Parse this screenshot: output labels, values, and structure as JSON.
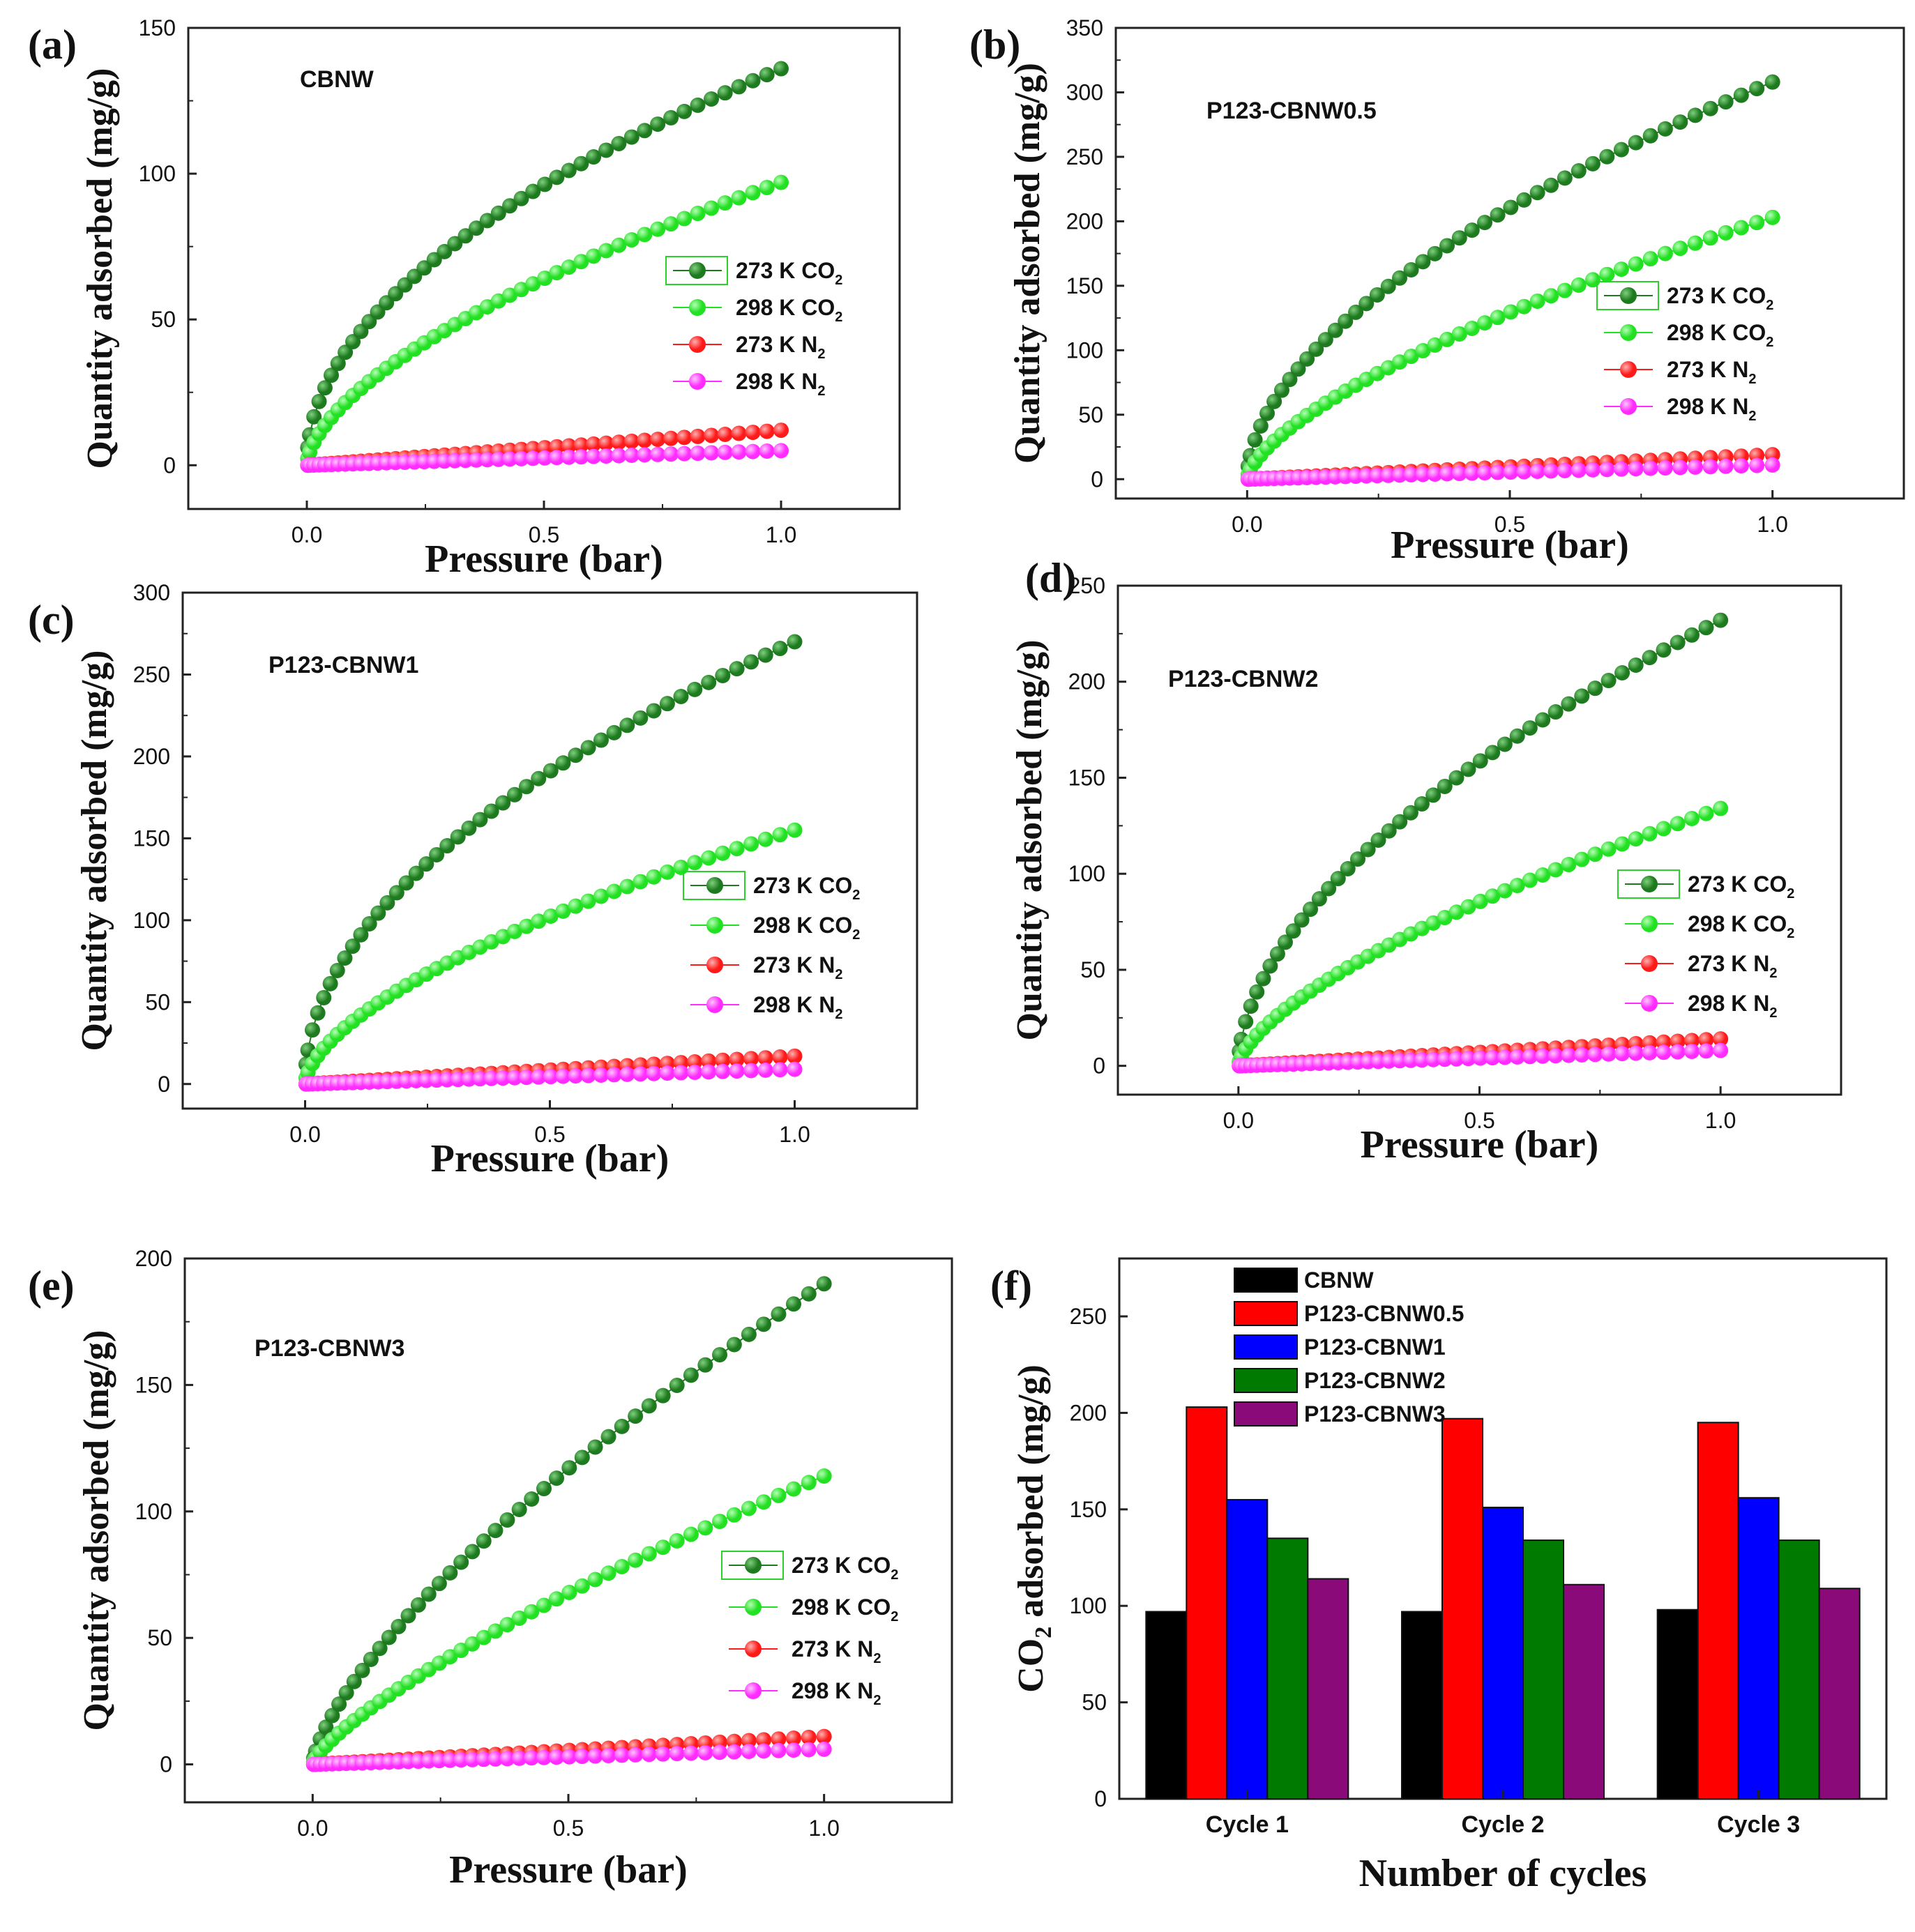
{
  "figure": {
    "series_styles": [
      {
        "key": "co2_273",
        "color": "#1e7a1e",
        "highlight": "#7ecf7e"
      },
      {
        "key": "co2_298",
        "color": "#22e022",
        "highlight": "#b6ffb6"
      },
      {
        "key": "n2_273",
        "color": "#ff1a1a",
        "highlight": "#ffb0b0"
      },
      {
        "key": "n2_298",
        "color": "#ff2bff",
        "highlight": "#ffc6ff"
      }
    ],
    "bar_colors": [
      "#000000",
      "#ff0000",
      "#0000ff",
      "#007a00",
      "#8b0a7a"
    ]
  },
  "chart_data": [
    {
      "panel": "(a)",
      "type": "line",
      "title": "CBNW",
      "xlabel": "Pressure (bar)",
      "ylabel": "Quantity adsorbed (mg/g)",
      "xlim": [
        -0.25,
        1.25
      ],
      "ylim": [
        -15,
        150
      ],
      "xticks": [
        "0.0",
        "0.5",
        "1.0"
      ],
      "yticks": [
        "0",
        "50",
        "100",
        "150"
      ],
      "legend": [
        "273 K CO",
        "298 K CO",
        "273 K N",
        "298 K N"
      ],
      "legend_subs": [
        "2",
        "2",
        "2",
        "2"
      ],
      "series": [
        {
          "name": "273 K CO2",
          "y_at_1bar": 136,
          "shape": 0.5
        },
        {
          "name": "298 K CO2",
          "y_at_1bar": 97,
          "shape": 0.6
        },
        {
          "name": "273 K N2",
          "y_at_1bar": 12,
          "shape": 1.0
        },
        {
          "name": "298 K N2",
          "y_at_1bar": 5,
          "shape": 1.0
        }
      ]
    },
    {
      "panel": "(b)",
      "type": "line",
      "title": "P123-CBNW0.5",
      "xlabel": "Pressure (bar)",
      "ylabel": "Quantity adsorbed (mg/g)",
      "xlim": [
        -0.25,
        1.25
      ],
      "ylim": [
        -15,
        350
      ],
      "xticks": [
        "0.0",
        "0.5",
        "1.0"
      ],
      "yticks": [
        "0",
        "50",
        "100",
        "150",
        "200",
        "250",
        "300",
        "350"
      ],
      "legend": [
        "273 K CO",
        "298 K CO",
        "273 K N",
        "298 K N"
      ],
      "legend_subs": [
        "2",
        "2",
        "2",
        "2"
      ],
      "series": [
        {
          "name": "273 K CO2",
          "y_at_1bar": 308,
          "shape": 0.55
        },
        {
          "name": "298 K CO2",
          "y_at_1bar": 203,
          "shape": 0.65
        },
        {
          "name": "273 K N2",
          "y_at_1bar": 19,
          "shape": 1.0
        },
        {
          "name": "298 K N2",
          "y_at_1bar": 11,
          "shape": 1.0
        }
      ]
    },
    {
      "panel": "(c)",
      "type": "line",
      "title": "P123-CBNW1",
      "xlabel": "Pressure (bar)",
      "ylabel": "Quantity adsorbed (mg/g)",
      "xlim": [
        -0.25,
        1.25
      ],
      "ylim": [
        -15,
        300
      ],
      "xticks": [
        "0.0",
        "0.5",
        "1.0"
      ],
      "yticks": [
        "0",
        "50",
        "100",
        "150",
        "200",
        "250",
        "300"
      ],
      "legend": [
        "273 K CO",
        "298 K CO",
        "273 K N",
        "298 K N"
      ],
      "legend_subs": [
        "2",
        "2",
        "2",
        "2"
      ],
      "series": [
        {
          "name": "273 K CO2",
          "y_at_1bar": 270,
          "shape": 0.5
        },
        {
          "name": "298 K CO2",
          "y_at_1bar": 155,
          "shape": 0.6
        },
        {
          "name": "273 K N2",
          "y_at_1bar": 17,
          "shape": 1.0
        },
        {
          "name": "298 K N2",
          "y_at_1bar": 9,
          "shape": 1.0
        }
      ]
    },
    {
      "panel": "(d)",
      "type": "line",
      "title": "P123-CBNW2",
      "xlabel": "Pressure (bar)",
      "ylabel": "Quantity adsorbed (mg/g)",
      "xlim": [
        -0.25,
        1.25
      ],
      "ylim": [
        -15,
        250
      ],
      "xticks": [
        "0.0",
        "0.5",
        "1.0"
      ],
      "yticks": [
        "0",
        "50",
        "100",
        "150",
        "200",
        "250"
      ],
      "legend": [
        "273 K CO",
        "298 K CO",
        "273 K N",
        "298 K N"
      ],
      "legend_subs": [
        "2",
        "2",
        "2",
        "2"
      ],
      "series": [
        {
          "name": "273 K CO2",
          "y_at_1bar": 232,
          "shape": 0.55
        },
        {
          "name": "298 K CO2",
          "y_at_1bar": 134,
          "shape": 0.65
        },
        {
          "name": "273 K N2",
          "y_at_1bar": 14,
          "shape": 1.0
        },
        {
          "name": "298 K N2",
          "y_at_1bar": 8,
          "shape": 1.0
        }
      ]
    },
    {
      "panel": "(e)",
      "type": "line",
      "title": "P123-CBNW3",
      "xlabel": "Pressure (bar)",
      "ylabel": "Quantity adsorbed (mg/g)",
      "xlim": [
        -0.25,
        1.25
      ],
      "ylim": [
        -15,
        200
      ],
      "xticks": [
        "0.0",
        "0.5",
        "1.0"
      ],
      "yticks": [
        "0",
        "50",
        "100",
        "150",
        "200"
      ],
      "legend": [
        "273 K CO",
        "298 K CO",
        "273 K N",
        "298 K N"
      ],
      "legend_subs": [
        "2",
        "2",
        "2",
        "2"
      ],
      "series": [
        {
          "name": "273 K CO2",
          "y_at_1bar": 190,
          "shape": 0.7
        },
        {
          "name": "298 K CO2",
          "y_at_1bar": 114,
          "shape": 0.75
        },
        {
          "name": "273 K N2",
          "y_at_1bar": 11,
          "shape": 1.0
        },
        {
          "name": "298 K N2",
          "y_at_1bar": 6,
          "shape": 1.0
        }
      ]
    },
    {
      "panel": "(f)",
      "type": "bar",
      "title": "",
      "xlabel": "Number of cycles",
      "ylabel_main": "CO",
      "ylabel_sub": "2",
      "ylabel_rest": " adsorbed (mg/g)",
      "ylim": [
        0,
        280
      ],
      "yticks": [
        "0",
        "50",
        "100",
        "150",
        "200",
        "250"
      ],
      "categories": [
        "Cycle 1",
        "Cycle 2",
        "Cycle 3"
      ],
      "series": [
        {
          "name": "CBNW",
          "values": [
            97,
            97,
            98
          ]
        },
        {
          "name": "P123-CBNW0.5",
          "values": [
            203,
            197,
            195
          ]
        },
        {
          "name": "P123-CBNW1",
          "values": [
            155,
            151,
            156
          ]
        },
        {
          "name": "P123-CBNW2",
          "values": [
            135,
            134,
            134
          ]
        },
        {
          "name": "P123-CBNW3",
          "values": [
            114,
            111,
            109
          ]
        }
      ]
    }
  ]
}
